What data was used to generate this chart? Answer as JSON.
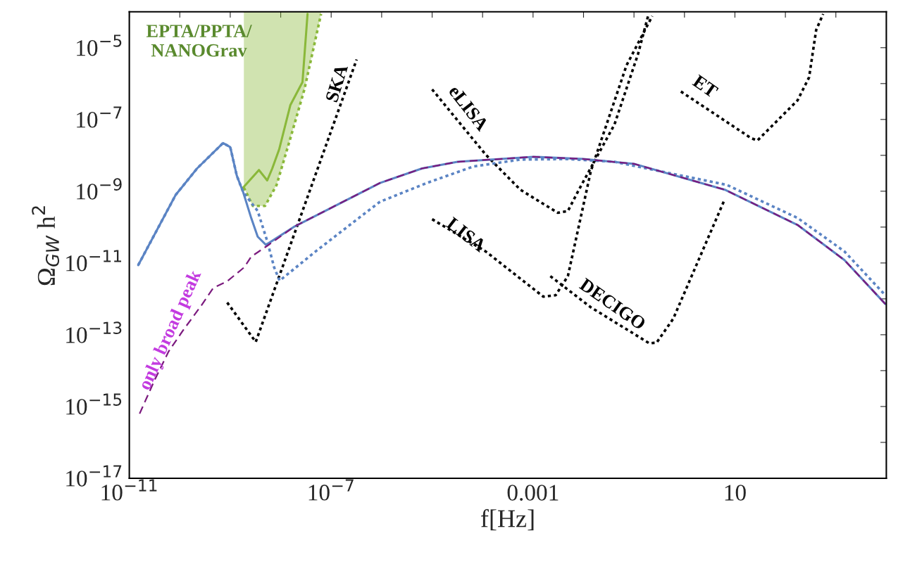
{
  "chart_data": {
    "type": "line",
    "xlabel": "f[Hz]",
    "ylabel": "Ω$_{GW}$ h$^{2}$",
    "log": "xy",
    "xlim": [
      1e-11,
      10000
    ],
    "ylim": [
      1e-17,
      0.0001
    ],
    "xticks": [
      {
        "value": 1e-11,
        "label": "10$^{−11}$"
      },
      {
        "value": 1e-10,
        "label": null
      },
      {
        "value": 1e-09,
        "label": null
      },
      {
        "value": 1e-08,
        "label": null
      },
      {
        "value": 1e-07,
        "label": "10$^{−7}$"
      },
      {
        "value": 1e-06,
        "label": null
      },
      {
        "value": 1e-05,
        "label": null
      },
      {
        "value": 0.0001,
        "label": null
      },
      {
        "value": 0.001,
        "label": "0.001"
      },
      {
        "value": 0.01,
        "label": null
      },
      {
        "value": 0.1,
        "label": null
      },
      {
        "value": 1,
        "label": null
      },
      {
        "value": 10,
        "label": "10"
      },
      {
        "value": 100,
        "label": null
      },
      {
        "value": 1000,
        "label": null
      }
    ],
    "yticks": [
      {
        "value": 1e-17,
        "label": "10$^{−17}$"
      },
      {
        "value": 1e-16,
        "label": null
      },
      {
        "value": 1e-15,
        "label": "10$^{−15}$"
      },
      {
        "value": 1e-14,
        "label": null
      },
      {
        "value": 1e-13,
        "label": "10$^{−13}$"
      },
      {
        "value": 1e-12,
        "label": null
      },
      {
        "value": 1e-11,
        "label": "10$^{−11}$"
      },
      {
        "value": 1e-10,
        "label": null
      },
      {
        "value": 1e-09,
        "label": "10$^{−9}$"
      },
      {
        "value": 1e-08,
        "label": null
      },
      {
        "value": 1e-07,
        "label": "10$^{−7}$"
      },
      {
        "value": 1e-06,
        "label": null
      },
      {
        "value": 1e-05,
        "label": "10$^{−5}$"
      }
    ],
    "grid": false,
    "legend": false,
    "marker": "none",
    "series": [
      {
        "color": "#8ab83a",
        "line_style": "dotted",
        "x": [
          1.86e-09,
          2.8e-09,
          4.9e-09,
          8.3e-09,
          1.55e-08,
          2.95e-08,
          6.3e-08
        ],
        "values": [
          1.26e-09,
          3.9e-10,
          3.9e-10,
          1.5e-09,
          2.95e-08,
          6.9e-07,
          8.7e-05
        ],
        "lower": [
          1.26e-09,
          3.9e-10,
          3.9e-10,
          1.5e-09,
          2.95e-08,
          6.9e-07,
          8.7e-05
        ],
        "upper": [
          0.0001,
          0.0001,
          0.0001,
          0.0001,
          0.0001,
          0.0001,
          0.0001
        ]
      },
      {
        "name": "EPTA/PPTA/\nNANOGrav",
        "color": "#8ab83a",
        "line_style": "solid",
        "x": [
          1.8e-09,
          3.7e-09,
          5.4e-09,
          6.8e-09,
          9.3e-09,
          1.55e-08,
          2.7e-08,
          3.4e-08
        ],
        "values": [
          1.26e-09,
          3.9e-09,
          2e-09,
          4.3e-09,
          1.45e-08,
          2.5e-07,
          1.1e-06,
          8.7e-05
        ]
      },
      {
        "name": "SKA",
        "color": "#000000",
        "line_style": "dotted",
        "x": [
          8.7e-10,
          3.2e-09,
          3.2e-07
        ],
        "values": [
          7.9e-13,
          6.3e-14,
          4.7e-06
        ]
      },
      {
        "name": "eLISA",
        "color": "#000000",
        "line_style": "dotted",
        "x": [
          1e-05,
          0.000115,
          0.00056,
          0.0031,
          0.0049,
          0.0081,
          0.041,
          0.12,
          0.19
        ],
        "values": [
          6.9e-07,
          1.05e-08,
          1.1e-09,
          2.5e-10,
          2.8e-10,
          1.1e-09,
          7.2e-08,
          6.6e-06,
          7.6e-05
        ]
      },
      {
        "name": "LISA",
        "color": "#000000",
        "line_style": "dotted",
        "x": [
          1e-05,
          0.000115,
          0.0016,
          0.0028,
          0.0049,
          0.014,
          0.071,
          0.23
        ],
        "values": [
          1.66e-10,
          2.1e-11,
          1.15e-12,
          1.26e-12,
          4.3e-12,
          3.7e-09,
          3.2e-06,
          7.6e-05
        ]
      },
      {
        "name": "DECIGO",
        "color": "#000000",
        "line_style": "dotted",
        "x": [
          0.0022,
          0.014,
          0.2,
          0.28,
          0.6,
          6.3
        ],
        "values": [
          4.3e-12,
          5.8e-13,
          5.8e-14,
          6e-14,
          2.8e-13,
          6e-10
        ]
      },
      {
        "name": "ET",
        "color": "#000000",
        "line_style": "dotted",
        "x": [
          0.85,
          21,
          28,
          174,
          295,
          407,
          560
        ],
        "values": [
          6e-07,
          3e-08,
          2.6e-08,
          3.4e-07,
          1.5e-06,
          3.1e-05,
          8.7e-05
        ]
      },
      {
        "color": "#5b84c4",
        "line_style": "dotted",
        "x": [
          1.5e-11,
          8.3e-11,
          2.2e-10,
          7.2e-10,
          1e-09,
          1.35e-09,
          1.8e-09,
          3.5e-09,
          5.4e-09,
          7.4e-09,
          9.5e-09,
          1.55e-08,
          4.7e-08,
          3.9e-07,
          9.3e-07,
          7.9e-06,
          6.6e-05,
          0.00056,
          0.0049,
          0.041,
          6.9,
          174,
          1480,
          9550
        ],
        "values": [
          8.7e-12,
          7.9e-10,
          4.3e-09,
          2.2e-08,
          1.7e-08,
          2.7e-09,
          9.5e-10,
          2.8e-10,
          4.1e-11,
          7.6e-12,
          3.2e-12,
          5.6e-12,
          2e-11,
          2e-10,
          5.1e-10,
          1.7e-09,
          4.9e-09,
          7.6e-09,
          7.9e-09,
          6.6e-09,
          1.5e-09,
          1.8e-10,
          2.1e-11,
          1.26e-12
        ]
      },
      {
        "color": "#5b84c4",
        "line_style": "solid",
        "x": [
          1.5e-11,
          8.3e-11,
          2.2e-10,
          7.2e-10,
          1e-09,
          1.35e-09,
          1.8e-09,
          2.6e-09,
          3.5e-09,
          5.1e-09,
          1.9e-08,
          9.3e-07,
          6.3e-06,
          3.2e-05,
          0.001,
          0.01,
          0.1,
          6.3,
          174,
          1480,
          9550
        ],
        "values": [
          8.7e-12,
          7.9e-10,
          4.3e-09,
          2.2e-08,
          1.7e-08,
          2.7e-09,
          9.5e-10,
          1.8e-10,
          5.4e-11,
          3.2e-11,
          1.05e-10,
          1.7e-09,
          4.3e-09,
          6.6e-09,
          9.1e-09,
          7.9e-09,
          5.8e-09,
          1.1e-09,
          1.15e-10,
          1.2e-11,
          7.2e-13
        ]
      },
      {
        "name": "only broad peak",
        "color": "#7b1a7e",
        "line_style": "dashed",
        "x": [
          1.6e-11,
          3.2e-11,
          6e-11,
          1.15e-10,
          2.75e-10,
          4.6e-10,
          8.7e-10,
          1.9e-09,
          2.6e-09,
          5.4e-09,
          1.9e-08,
          9.3e-07,
          6.3e-06,
          3.2e-05,
          0.001,
          0.01,
          0.1,
          6.3,
          174,
          1480,
          9550
        ],
        "values": [
          6.3e-16,
          5.6e-15,
          3.4e-14,
          1.3e-13,
          6.9e-13,
          2e-12,
          3.1e-12,
          7.6e-12,
          1.5e-11,
          3e-11,
          1.05e-10,
          1.7e-09,
          4.3e-09,
          6.6e-09,
          9.1e-09,
          7.9e-09,
          5.8e-09,
          1.1e-09,
          1.15e-10,
          1.2e-11,
          7.2e-13
        ]
      }
    ]
  }
}
